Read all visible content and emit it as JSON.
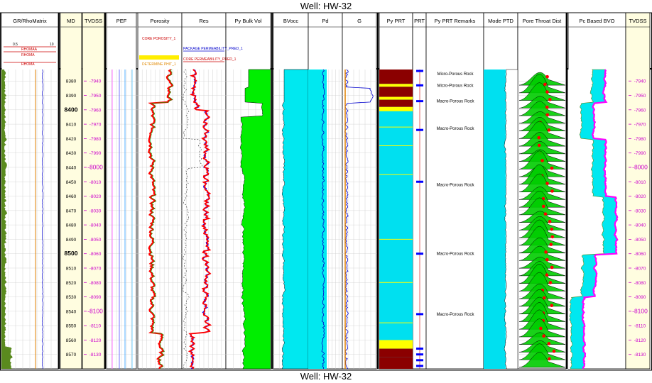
{
  "well_title_top": "Well: HW-32",
  "well_title_bottom": "Well: HW-32",
  "colors": {
    "depth_track_bg": "#fffde0",
    "tvdss_text": "#cc00cc",
    "gr_fill": "#5a8a1e",
    "porosity_curve": "#ff0000",
    "resistivity_curve": "#0000ff",
    "bulk_volume_fill": "#00ee00",
    "bvocc_fill": "#00e8f0",
    "pyprt_main": "#00e0f0",
    "pore_throat_fill": "#00cc00",
    "bvo_magenta": "#ff00ff"
  },
  "chart_data": {
    "type": "well_log",
    "well": "HW-32",
    "depth_unit": "ft",
    "md_range": [
      8372,
      8580
    ],
    "tracks": [
      {
        "name": "GR/RhoMatrix",
        "legend": [
          "RHOMAA",
          "RHOMA",
          "RHOMA"
        ],
        "scale": [
          "0.5",
          "10"
        ]
      },
      {
        "name": "MD",
        "ticks": [
          8380,
          8390,
          8400,
          8410,
          8420,
          8430,
          8440,
          8450,
          8460,
          8470,
          8480,
          8490,
          8500,
          8510,
          8520,
          8530,
          8540,
          8550,
          8560,
          8570
        ],
        "major": [
          8400,
          8500
        ]
      },
      {
        "name": "TVDSS",
        "ticks": [
          -7940,
          -7950,
          -7960,
          -7970,
          -7980,
          -7990,
          -8000,
          -8010,
          -8020,
          -8030,
          -8040,
          -8050,
          -8060,
          -8070,
          -8080,
          -8090,
          -8100,
          -8110,
          -8120,
          -8130
        ],
        "major": [
          -8000,
          -8100
        ]
      },
      {
        "name": "PEF"
      },
      {
        "name": "Porosity",
        "legend": [
          "CORE POROSITY_1",
          "DETERMINE PHIT_1"
        ]
      },
      {
        "name": "Res",
        "legend": [
          "PACKAGE PERMEABILITY_PRED_1",
          "CORE PERMEABILITY_PRED_1"
        ]
      },
      {
        "name": "Py Bulk Vol"
      },
      {
        "name": "BVocc"
      },
      {
        "name": "Pd"
      },
      {
        "name": "G"
      },
      {
        "name": "Py PRT"
      },
      {
        "name": "PRT"
      },
      {
        "name": "Py PRT Remarks",
        "remarks": [
          {
            "md": 8375,
            "text": "Micro-Porous Rock"
          },
          {
            "md": 8383,
            "text": "Micro-Porous Rock"
          },
          {
            "md": 8394,
            "text": "Macro-Porous Rock"
          },
          {
            "md": 8413,
            "text": "Macro-Porous Rock"
          },
          {
            "md": 8452,
            "text": "Macro-Porous Rock"
          },
          {
            "md": 8500,
            "text": "Macro-Porous Rock"
          },
          {
            "md": 8542,
            "text": "Macro-Porous Rock"
          }
        ]
      },
      {
        "name": "Mode PTD"
      },
      {
        "name": "Pore Throat Dist"
      },
      {
        "name": "Pc Based BVO"
      },
      {
        "name": "TVDSS",
        "ticks": [
          -7940,
          -7950,
          -7960,
          -7970,
          -7980,
          -7990,
          -8000,
          -8010,
          -8020,
          -8030,
          -8040,
          -8050,
          -8060,
          -8070,
          -8080,
          -8090,
          -8100,
          -8110,
          -8120,
          -8130
        ],
        "major": [
          -8000,
          -8100
        ]
      }
    ]
  }
}
